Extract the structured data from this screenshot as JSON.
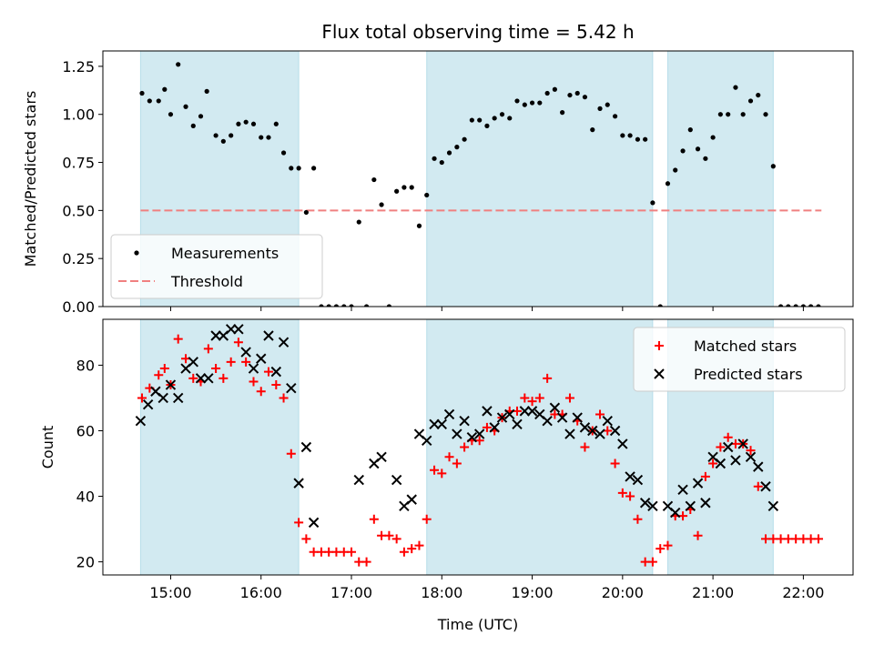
{
  "chart_data": {
    "type": "scatter",
    "title": "Flux total observing time = 5.42 h",
    "xlabel": "Time (UTC)",
    "x_tick_labels": [
      "15:00",
      "16:00",
      "17:00",
      "18:00",
      "19:00",
      "20:00",
      "21:00",
      "22:00"
    ],
    "x_tick_hours": [
      15,
      16,
      17,
      18,
      19,
      20,
      21,
      22
    ],
    "xlim_hours": [
      14.25,
      22.55
    ],
    "highlight_spans_hours": [
      [
        14.667,
        16.417
      ],
      [
        17.833,
        20.333
      ],
      [
        20.5,
        21.667
      ]
    ],
    "highlight_color": "#add8e6",
    "panels": [
      {
        "id": "ratio",
        "ylabel": "Matched/Predicted stars",
        "ylim": [
          0,
          1.33
        ],
        "y_ticks": [
          0.0,
          0.25,
          0.5,
          0.75,
          1.0,
          1.25
        ],
        "y_tick_labels": [
          "0.00",
          "0.25",
          "0.50",
          "0.75",
          "1.00",
          "1.25"
        ],
        "legend": {
          "position": "lower-left",
          "items": [
            {
              "label": "Measurements",
              "marker": "dot",
              "color": "#000000"
            },
            {
              "label": "Threshold",
              "marker": "dashed-line",
              "color": "#f08080"
            }
          ]
        },
        "threshold": {
          "name": "Threshold",
          "y": 0.5,
          "x_range_hours": [
            14.667,
            22.2
          ],
          "color": "#f08080"
        },
        "series": [
          {
            "name": "Measurements",
            "marker": "dot",
            "color": "#000000",
            "x_hours": [
              14.683,
              14.767,
              14.867,
              14.933,
              15.0,
              15.083,
              15.167,
              15.25,
              15.333,
              15.4,
              15.5,
              15.583,
              15.667,
              15.75,
              15.833,
              15.917,
              16.0,
              16.083,
              16.167,
              16.25,
              16.333,
              16.417,
              16.5,
              16.583,
              16.667,
              16.75,
              16.833,
              16.917,
              17.0,
              17.083,
              17.167,
              17.25,
              17.333,
              17.417,
              17.5,
              17.583,
              17.667,
              17.75,
              17.833,
              17.917,
              18.0,
              18.083,
              18.167,
              18.25,
              18.333,
              18.417,
              18.5,
              18.583,
              18.667,
              18.75,
              18.833,
              18.917,
              19.0,
              19.083,
              19.167,
              19.25,
              19.333,
              19.417,
              19.5,
              19.583,
              19.667,
              19.75,
              19.833,
              19.917,
              20.0,
              20.083,
              20.167,
              20.25,
              20.333,
              20.417,
              20.5,
              20.583,
              20.667,
              20.75,
              20.833,
              20.917,
              21.0,
              21.083,
              21.167,
              21.25,
              21.333,
              21.417,
              21.5,
              21.583,
              21.667,
              21.75,
              21.833,
              21.917,
              22.0,
              22.083,
              22.167
            ],
            "y": [
              1.11,
              1.07,
              1.07,
              1.13,
              1.0,
              1.26,
              1.04,
              0.94,
              0.99,
              1.12,
              0.89,
              0.86,
              0.89,
              0.95,
              0.96,
              0.95,
              0.88,
              0.88,
              0.95,
              0.8,
              0.72,
              0.72,
              0.49,
              0.72,
              0.0,
              0.0,
              0.0,
              0.0,
              0.0,
              0.44,
              0.0,
              0.66,
              0.53,
              0.0,
              0.6,
              0.62,
              0.62,
              0.42,
              0.58,
              0.77,
              0.75,
              0.8,
              0.83,
              0.87,
              0.97,
              0.97,
              0.94,
              0.98,
              1.0,
              0.98,
              1.07,
              1.05,
              1.06,
              1.06,
              1.11,
              1.13,
              1.01,
              1.1,
              1.11,
              1.09,
              0.92,
              1.03,
              1.05,
              0.99,
              0.89,
              0.89,
              0.87,
              0.87,
              0.54,
              0.0,
              0.64,
              0.71,
              0.81,
              0.92,
              0.82,
              0.77,
              0.88,
              1.0,
              1.0,
              1.14,
              1.0,
              1.07,
              1.1,
              1.0,
              0.73,
              0.0,
              0.0,
              0.0,
              0.0,
              0.0,
              0.0
            ]
          }
        ]
      },
      {
        "id": "counts",
        "ylabel": "Count",
        "ylim": [
          16,
          94
        ],
        "y_ticks": [
          20,
          40,
          60,
          80
        ],
        "y_tick_labels": [
          "20",
          "40",
          "60",
          "80"
        ],
        "legend": {
          "position": "top-right",
          "items": [
            {
              "label": "Matched stars",
              "marker": "plus",
              "color": "#ff0000"
            },
            {
              "label": "Predicted stars",
              "marker": "x",
              "color": "#000000"
            }
          ]
        },
        "series": [
          {
            "name": "Matched stars",
            "marker": "plus",
            "color": "#ff0000",
            "x_hours": [
              14.683,
              14.767,
              14.867,
              14.933,
              15.0,
              15.083,
              15.167,
              15.25,
              15.333,
              15.417,
              15.5,
              15.583,
              15.667,
              15.75,
              15.833,
              15.917,
              16.0,
              16.083,
              16.167,
              16.25,
              16.333,
              16.417,
              16.5,
              16.583,
              16.667,
              16.75,
              16.833,
              16.917,
              17.0,
              17.083,
              17.167,
              17.25,
              17.333,
              17.417,
              17.5,
              17.583,
              17.667,
              17.75,
              17.833,
              17.917,
              18.0,
              18.083,
              18.167,
              18.25,
              18.333,
              18.417,
              18.5,
              18.583,
              18.667,
              18.75,
              18.833,
              18.917,
              19.0,
              19.083,
              19.167,
              19.25,
              19.333,
              19.417,
              19.5,
              19.583,
              19.667,
              19.75,
              19.833,
              19.917,
              20.0,
              20.083,
              20.167,
              20.25,
              20.333,
              20.417,
              20.5,
              20.583,
              20.667,
              20.75,
              20.833,
              20.917,
              21.0,
              21.083,
              21.167,
              21.25,
              21.333,
              21.417,
              21.5,
              21.583,
              21.667,
              21.75,
              21.833,
              21.917,
              22.0,
              22.083,
              22.167
            ],
            "y": [
              70,
              73,
              77,
              79,
              74,
              88,
              82,
              76,
              75,
              85,
              79,
              76,
              81,
              87,
              81,
              75,
              72,
              78,
              74,
              70,
              53,
              32,
              27,
              23,
              23,
              23,
              23,
              23,
              23,
              20,
              20,
              33,
              28,
              28,
              27,
              23,
              24,
              25,
              33,
              48,
              47,
              52,
              50,
              55,
              57,
              57,
              61,
              60,
              64,
              66,
              66,
              70,
              69,
              70,
              76,
              65,
              65,
              70,
              63,
              55,
              60,
              65,
              60,
              50,
              41,
              40,
              33,
              20,
              20,
              24,
              25,
              34,
              34,
              36,
              28,
              46,
              50,
              55,
              58,
              56,
              56,
              54,
              43,
              27,
              27,
              27,
              27,
              27,
              27,
              27,
              27
            ]
          },
          {
            "name": "Predicted stars",
            "marker": "x",
            "color": "#000000",
            "x_hours": [
              14.667,
              14.75,
              14.833,
              14.917,
              15.0,
              15.083,
              15.167,
              15.25,
              15.333,
              15.417,
              15.5,
              15.583,
              15.667,
              15.75,
              15.833,
              15.917,
              16.0,
              16.083,
              16.167,
              16.25,
              16.333,
              16.417,
              16.5,
              16.583,
              17.083,
              17.25,
              17.333,
              17.5,
              17.583,
              17.667,
              17.75,
              17.833,
              17.917,
              18.0,
              18.083,
              18.167,
              18.25,
              18.333,
              18.417,
              18.5,
              18.583,
              18.667,
              18.75,
              18.833,
              18.917,
              19.0,
              19.083,
              19.167,
              19.25,
              19.333,
              19.417,
              19.5,
              19.583,
              19.667,
              19.75,
              19.833,
              19.917,
              20.0,
              20.083,
              20.167,
              20.25,
              20.333,
              20.5,
              20.583,
              20.667,
              20.75,
              20.833,
              20.917,
              21.0,
              21.083,
              21.167,
              21.25,
              21.333,
              21.417,
              21.5,
              21.583,
              21.667
            ],
            "y": [
              63,
              68,
              72,
              70,
              74,
              70,
              79,
              81,
              76,
              76,
              89,
              89,
              91,
              91,
              84,
              79,
              82,
              89,
              78,
              87,
              73,
              44,
              55,
              32,
              45,
              50,
              52,
              45,
              37,
              39,
              59,
              57,
              62,
              62,
              65,
              59,
              63,
              58,
              59,
              66,
              61,
              64,
              65,
              62,
              66,
              66,
              65,
              63,
              67,
              64,
              59,
              64,
              61,
              60,
              59,
              63,
              60,
              56,
              46,
              45,
              38,
              37,
              37,
              35,
              42,
              37,
              44,
              38,
              52,
              50,
              55,
              51,
              56,
              52,
              49,
              43,
              37
            ]
          }
        ]
      }
    ]
  }
}
